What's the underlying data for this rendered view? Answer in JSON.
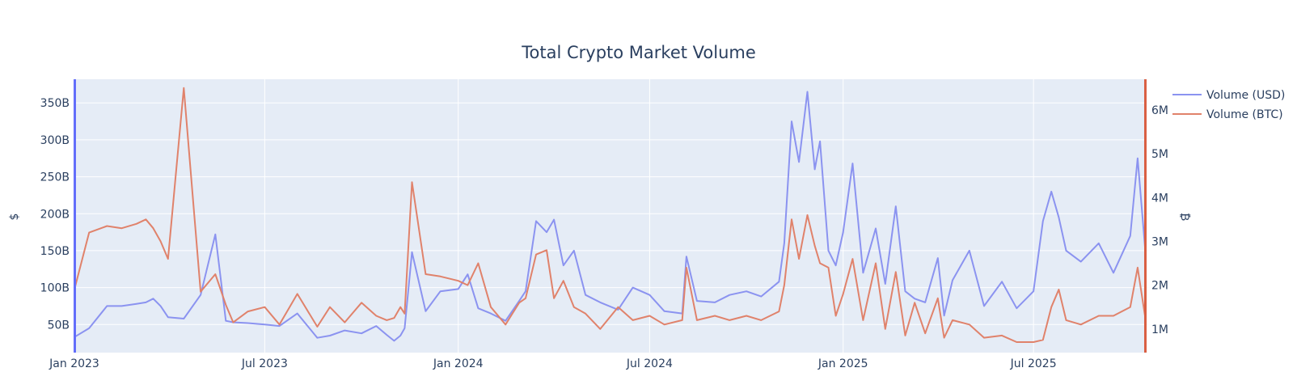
{
  "chart_data": {
    "type": "line",
    "title": "Total Crypto Market Volume",
    "xlabel": "",
    "x_ticks": [
      "Jan 2023",
      "Jul 2023",
      "Jan 2024",
      "Jul 2024",
      "Jan 2025",
      "Jul 2025"
    ],
    "x_range": [
      "2023-01-01",
      "2025-10-15"
    ],
    "y_left": {
      "label": "$",
      "range_billions": [
        12,
        382
      ],
      "ticks": [
        "50B",
        "100B",
        "150B",
        "200B",
        "250B",
        "300B",
        "350B"
      ],
      "tick_values_billions": [
        50,
        100,
        150,
        200,
        250,
        300,
        350
      ],
      "axis_color": "#636efa"
    },
    "y_right": {
      "label": "₿",
      "range_millions": [
        0.46,
        6.7
      ],
      "ticks": [
        "1M",
        "2M",
        "3M",
        "4M",
        "5M",
        "6M"
      ],
      "tick_values_millions": [
        1,
        2,
        3,
        4,
        5,
        6
      ],
      "axis_color": "#d95f43"
    },
    "grid": true,
    "legend_position": "top-right",
    "series": [
      {
        "name": "Volume (USD)",
        "axis": "left",
        "unit": "billions USD",
        "color": "#8b93f0",
        "x": [
          "2023-01-01",
          "2023-01-15",
          "2023-02-01",
          "2023-02-15",
          "2023-03-01",
          "2023-03-10",
          "2023-03-17",
          "2023-03-24",
          "2023-03-31",
          "2023-04-15",
          "2023-05-01",
          "2023-05-15",
          "2023-05-25",
          "2023-06-01",
          "2023-06-15",
          "2023-07-01",
          "2023-07-15",
          "2023-08-01",
          "2023-08-20",
          "2023-09-01",
          "2023-09-15",
          "2023-10-01",
          "2023-10-15",
          "2023-10-25",
          "2023-11-01",
          "2023-11-07",
          "2023-11-11",
          "2023-11-18",
          "2023-12-01",
          "2023-12-15",
          "2024-01-01",
          "2024-01-10",
          "2024-01-20",
          "2024-02-01",
          "2024-02-15",
          "2024-02-28",
          "2024-03-05",
          "2024-03-15",
          "2024-03-25",
          "2024-04-01",
          "2024-04-10",
          "2024-04-20",
          "2024-05-01",
          "2024-05-15",
          "2024-06-01",
          "2024-06-15",
          "2024-07-01",
          "2024-07-15",
          "2024-08-01",
          "2024-08-05",
          "2024-08-15",
          "2024-09-01",
          "2024-09-15",
          "2024-10-01",
          "2024-10-15",
          "2024-11-01",
          "2024-11-06",
          "2024-11-13",
          "2024-11-20",
          "2024-11-28",
          "2024-12-05",
          "2024-12-10",
          "2024-12-18",
          "2024-12-25",
          "2025-01-01",
          "2025-01-10",
          "2025-01-20",
          "2025-02-01",
          "2025-02-10",
          "2025-02-20",
          "2025-03-01",
          "2025-03-10",
          "2025-03-20",
          "2025-04-01",
          "2025-04-07",
          "2025-04-15",
          "2025-05-01",
          "2025-05-15",
          "2025-06-01",
          "2025-06-15",
          "2025-07-01",
          "2025-07-10",
          "2025-07-18",
          "2025-07-25",
          "2025-08-01",
          "2025-08-15",
          "2025-09-01",
          "2025-09-15",
          "2025-10-01",
          "2025-10-08",
          "2025-10-15"
        ],
        "values": [
          33,
          45,
          75,
          75,
          78,
          80,
          85,
          75,
          60,
          58,
          90,
          172,
          55,
          53,
          52,
          50,
          48,
          65,
          32,
          35,
          42,
          38,
          48,
          36,
          28,
          35,
          45,
          148,
          68,
          95,
          98,
          118,
          72,
          65,
          55,
          82,
          95,
          190,
          175,
          192,
          130,
          150,
          90,
          80,
          70,
          100,
          90,
          68,
          65,
          142,
          82,
          80,
          90,
          95,
          88,
          108,
          160,
          325,
          270,
          365,
          260,
          298,
          150,
          130,
          175,
          268,
          120,
          180,
          105,
          210,
          95,
          85,
          80,
          140,
          62,
          110,
          150,
          75,
          108,
          72,
          95,
          190,
          230,
          195,
          150,
          135,
          160,
          120,
          170,
          275,
          155
        ],
        "legend_label": "Volume (USD)"
      },
      {
        "name": "Volume (BTC)",
        "axis": "right",
        "unit": "millions BTC",
        "color": "#e0826b",
        "x": [
          "2023-01-01",
          "2023-01-15",
          "2023-02-01",
          "2023-02-15",
          "2023-03-01",
          "2023-03-10",
          "2023-03-17",
          "2023-03-24",
          "2023-03-31",
          "2023-04-15",
          "2023-05-01",
          "2023-05-15",
          "2023-05-25",
          "2023-06-01",
          "2023-06-15",
          "2023-07-01",
          "2023-07-15",
          "2023-08-01",
          "2023-08-20",
          "2023-09-01",
          "2023-09-15",
          "2023-10-01",
          "2023-10-15",
          "2023-10-25",
          "2023-11-01",
          "2023-11-07",
          "2023-11-11",
          "2023-11-18",
          "2023-12-01",
          "2023-12-15",
          "2024-01-01",
          "2024-01-10",
          "2024-01-20",
          "2024-02-01",
          "2024-02-15",
          "2024-02-28",
          "2024-03-05",
          "2024-03-15",
          "2024-03-25",
          "2024-04-01",
          "2024-04-10",
          "2024-04-20",
          "2024-05-01",
          "2024-05-15",
          "2024-06-01",
          "2024-06-15",
          "2024-07-01",
          "2024-07-15",
          "2024-08-01",
          "2024-08-05",
          "2024-08-15",
          "2024-09-01",
          "2024-09-15",
          "2024-10-01",
          "2024-10-15",
          "2024-11-01",
          "2024-11-06",
          "2024-11-13",
          "2024-11-20",
          "2024-11-28",
          "2024-12-05",
          "2024-12-10",
          "2024-12-18",
          "2024-12-25",
          "2025-01-01",
          "2025-01-10",
          "2025-01-20",
          "2025-02-01",
          "2025-02-10",
          "2025-02-20",
          "2025-03-01",
          "2025-03-10",
          "2025-03-20",
          "2025-04-01",
          "2025-04-07",
          "2025-04-15",
          "2025-05-01",
          "2025-05-15",
          "2025-06-01",
          "2025-06-15",
          "2025-07-01",
          "2025-07-10",
          "2025-07-18",
          "2025-07-25",
          "2025-08-01",
          "2025-08-15",
          "2025-09-01",
          "2025-09-15",
          "2025-10-01",
          "2025-10-08",
          "2025-10-15"
        ],
        "values": [
          1.9,
          3.2,
          3.35,
          3.3,
          3.4,
          3.5,
          3.3,
          3.0,
          2.6,
          6.5,
          1.85,
          2.25,
          1.55,
          1.15,
          1.4,
          1.5,
          1.1,
          1.8,
          1.05,
          1.5,
          1.15,
          1.6,
          1.3,
          1.2,
          1.25,
          1.5,
          1.35,
          4.35,
          2.25,
          2.2,
          2.1,
          2.0,
          2.5,
          1.5,
          1.1,
          1.6,
          1.7,
          2.7,
          2.8,
          1.7,
          2.1,
          1.5,
          1.35,
          1.0,
          1.5,
          1.2,
          1.3,
          1.1,
          1.2,
          2.4,
          1.2,
          1.3,
          1.2,
          1.3,
          1.2,
          1.4,
          2.0,
          3.5,
          2.6,
          3.6,
          2.9,
          2.5,
          2.4,
          1.3,
          1.8,
          2.6,
          1.2,
          2.5,
          1.0,
          2.3,
          0.85,
          1.6,
          0.9,
          1.7,
          0.8,
          1.2,
          1.1,
          0.8,
          0.85,
          0.7,
          0.7,
          0.75,
          1.5,
          1.9,
          1.2,
          1.1,
          1.3,
          1.3,
          1.5,
          2.4,
          1.3
        ]
      }
    ]
  }
}
